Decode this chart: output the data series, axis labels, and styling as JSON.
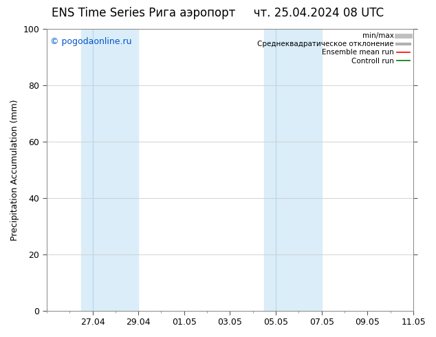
{
  "title_left": "ENS Time Series Рига аэропорт",
  "title_right": "чт. 25.04.2024 08 UTC",
  "ylabel": "Precipitation Accumulation (mm)",
  "ylim": [
    0,
    100
  ],
  "yticks": [
    0,
    20,
    40,
    60,
    80,
    100
  ],
  "xlim": [
    0,
    16
  ],
  "x_tick_positions": [
    2,
    4,
    6,
    8,
    10,
    12,
    14,
    16
  ],
  "x_tick_labels": [
    "27.04",
    "29.04",
    "01.05",
    "03.05",
    "05.05",
    "07.05",
    "09.05",
    "11.05"
  ],
  "shaded_bands": [
    {
      "x_start": 1.5,
      "x_mid": 2.0,
      "x_end": 4.0
    },
    {
      "x_start": 9.5,
      "x_mid": 10.0,
      "x_end": 12.0
    }
  ],
  "shade_color": "#daedf8",
  "shade_line_color": "#b8d4e8",
  "watermark": "© pogodaonline.ru",
  "watermark_color": "#0055cc",
  "legend_entries": [
    {
      "label": "min/max",
      "color": "#c0c0c0",
      "linewidth": 5,
      "linestyle": "-"
    },
    {
      "label": "Среднеквадратическое отклонение",
      "color": "#b0b0b0",
      "linewidth": 3,
      "linestyle": "-"
    },
    {
      "label": "Ensemble mean run",
      "color": "#ff0000",
      "linewidth": 1.2,
      "linestyle": "-"
    },
    {
      "label": "Controll run",
      "color": "#007700",
      "linewidth": 1.2,
      "linestyle": "-"
    }
  ],
  "background_color": "#ffffff",
  "plot_bg_color": "#ffffff",
  "grid_color": "#cccccc",
  "title_fontsize": 12,
  "legend_fontsize": 7.5,
  "tick_label_fontsize": 9,
  "ylabel_fontsize": 9,
  "right_ticks": [
    20,
    40,
    60,
    80,
    100
  ]
}
